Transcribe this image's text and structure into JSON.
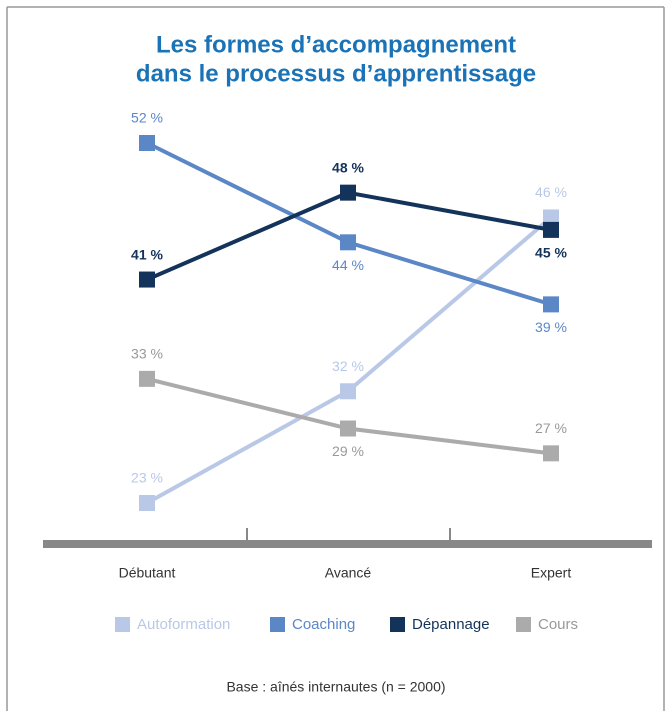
{
  "chart_data": {
    "type": "line",
    "title": [
      "Les formes d’accompagnement",
      "dans le processus d’apprentissage"
    ],
    "categories": [
      "Débutant",
      "Avancé",
      "Expert"
    ],
    "series": [
      {
        "name": "Autoformation",
        "color": "#b9c8e7",
        "values": [
          23,
          32,
          46
        ],
        "value_labels": [
          "23 %",
          "32 %",
          "46 %"
        ]
      },
      {
        "name": "Coaching",
        "color": "#5b87c7",
        "values": [
          52,
          44,
          39
        ],
        "value_labels": [
          "52 %",
          "44 %",
          "39 %"
        ]
      },
      {
        "name": "Dépannage",
        "color": "#14335b",
        "values": [
          41,
          48,
          45
        ],
        "value_labels": [
          "41 %",
          "48 %",
          "45 %"
        ]
      },
      {
        "name": "Cours",
        "color": "#ababab",
        "values": [
          33,
          29,
          27
        ],
        "value_labels": [
          "33 %",
          "29 %",
          "27 %"
        ]
      }
    ],
    "note": "Base : aînés internautes (n = 2000)"
  }
}
